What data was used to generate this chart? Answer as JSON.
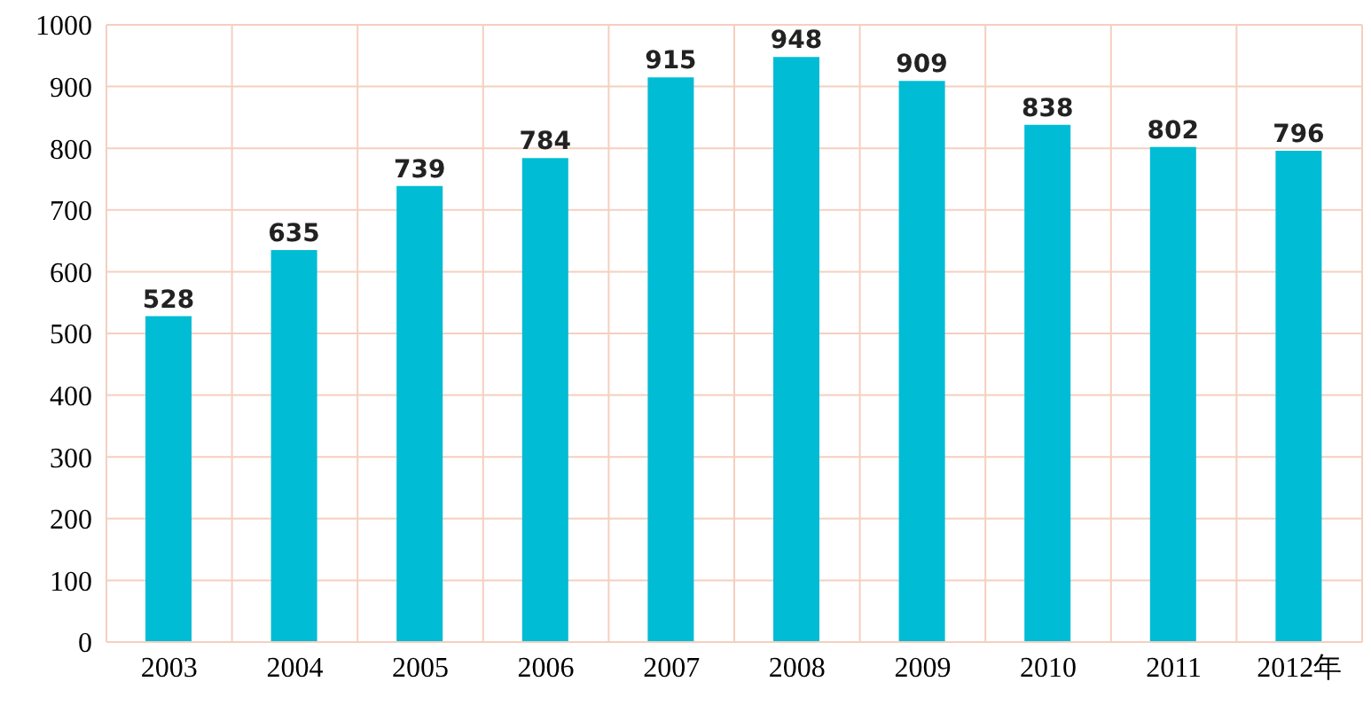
{
  "chart_data": {
    "type": "bar",
    "categories": [
      "2003",
      "2004",
      "2005",
      "2006",
      "2007",
      "2008",
      "2009",
      "2010",
      "2011",
      "2012年"
    ],
    "values": [
      528,
      635,
      739,
      784,
      915,
      948,
      909,
      838,
      802,
      796
    ],
    "color": "#00bcd4",
    "ylim": [
      0,
      1000
    ],
    "yticks": [
      0,
      100,
      200,
      300,
      400,
      500,
      600,
      700,
      800,
      900,
      1000
    ],
    "grid": true,
    "data_labels": true
  }
}
